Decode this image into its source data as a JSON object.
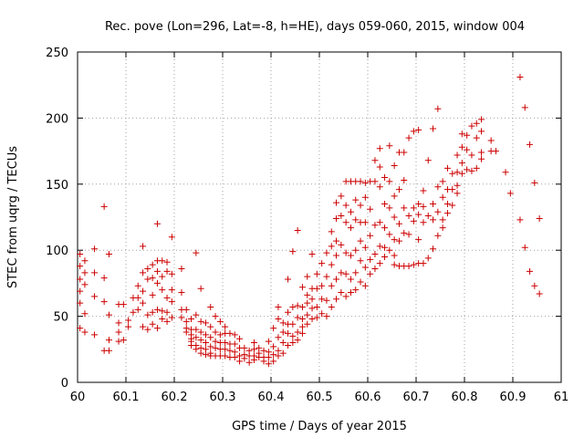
{
  "chart_data": {
    "type": "scatter",
    "title": "Rec. pove (Lon=296, Lat=-8, h=HE), days 059-060, 2015, window 004",
    "xlabel": "GPS time / Days of year 2015",
    "ylabel": "STEC from uqrg / TECUs",
    "xlim": [
      60,
      61
    ],
    "ylim": [
      0,
      250
    ],
    "xticks": [
      "60",
      "60.1",
      "60.2",
      "60.3",
      "60.4",
      "60.5",
      "60.6",
      "60.7",
      "60.8",
      "60.9",
      "61"
    ],
    "yticks": [
      "0",
      "50",
      "100",
      "150",
      "200",
      "250"
    ],
    "grid": true,
    "marker": "+",
    "color": "#cc0000",
    "points": [
      [
        60.005,
        97
      ],
      [
        60.005,
        88
      ],
      [
        60.005,
        78
      ],
      [
        60.005,
        69
      ],
      [
        60.005,
        60
      ],
      [
        60.005,
        41
      ],
      [
        60.015,
        92
      ],
      [
        60.015,
        83
      ],
      [
        60.015,
        74
      ],
      [
        60.015,
        52
      ],
      [
        60.015,
        38
      ],
      [
        60.035,
        101
      ],
      [
        60.035,
        83
      ],
      [
        60.035,
        65
      ],
      [
        60.035,
        36
      ],
      [
        60.055,
        133
      ],
      [
        60.055,
        79
      ],
      [
        60.055,
        61
      ],
      [
        60.055,
        24
      ],
      [
        60.065,
        97
      ],
      [
        60.065,
        51
      ],
      [
        60.065,
        24
      ],
      [
        60.065,
        32
      ],
      [
        60.085,
        59
      ],
      [
        60.085,
        45
      ],
      [
        60.085,
        38
      ],
      [
        60.085,
        31
      ],
      [
        60.095,
        59
      ],
      [
        60.095,
        32
      ],
      [
        60.105,
        47
      ],
      [
        60.105,
        42
      ],
      [
        60.115,
        64
      ],
      [
        60.115,
        53
      ],
      [
        60.125,
        73
      ],
      [
        60.125,
        64
      ],
      [
        60.125,
        55
      ],
      [
        60.135,
        103
      ],
      [
        60.135,
        83
      ],
      [
        60.135,
        69
      ],
      [
        60.135,
        60
      ],
      [
        60.135,
        42
      ],
      [
        60.145,
        86
      ],
      [
        60.145,
        78
      ],
      [
        60.145,
        51
      ],
      [
        60.145,
        40
      ],
      [
        60.155,
        89
      ],
      [
        60.155,
        79
      ],
      [
        60.155,
        66
      ],
      [
        60.155,
        53
      ],
      [
        60.155,
        44
      ],
      [
        60.165,
        120
      ],
      [
        60.165,
        92
      ],
      [
        60.165,
        84
      ],
      [
        60.165,
        75
      ],
      [
        60.165,
        55
      ],
      [
        60.165,
        41
      ],
      [
        60.175,
        92
      ],
      [
        60.175,
        80
      ],
      [
        60.175,
        70
      ],
      [
        60.175,
        54
      ],
      [
        60.175,
        48
      ],
      [
        60.185,
        91
      ],
      [
        60.185,
        84
      ],
      [
        60.185,
        64
      ],
      [
        60.185,
        53
      ],
      [
        60.185,
        46
      ],
      [
        60.195,
        110
      ],
      [
        60.195,
        82
      ],
      [
        60.195,
        70
      ],
      [
        60.195,
        61
      ],
      [
        60.195,
        49
      ],
      [
        60.215,
        86
      ],
      [
        60.215,
        68
      ],
      [
        60.215,
        55
      ],
      [
        60.215,
        49
      ],
      [
        60.225,
        55
      ],
      [
        60.225,
        46
      ],
      [
        60.225,
        41
      ],
      [
        60.225,
        38
      ],
      [
        60.235,
        48
      ],
      [
        60.235,
        40
      ],
      [
        60.235,
        36
      ],
      [
        60.235,
        33
      ],
      [
        60.235,
        31
      ],
      [
        60.235,
        28
      ],
      [
        60.245,
        98
      ],
      [
        60.245,
        51
      ],
      [
        60.245,
        40
      ],
      [
        60.245,
        34
      ],
      [
        60.245,
        28
      ],
      [
        60.245,
        25
      ],
      [
        60.255,
        71
      ],
      [
        60.255,
        46
      ],
      [
        60.255,
        38
      ],
      [
        60.255,
        32
      ],
      [
        60.255,
        26
      ],
      [
        60.255,
        22
      ],
      [
        60.265,
        45
      ],
      [
        60.265,
        36
      ],
      [
        60.265,
        30
      ],
      [
        60.265,
        25
      ],
      [
        60.265,
        21
      ],
      [
        60.275,
        57
      ],
      [
        60.275,
        42
      ],
      [
        60.275,
        34
      ],
      [
        60.275,
        27
      ],
      [
        60.275,
        22
      ],
      [
        60.275,
        20
      ],
      [
        60.285,
        50
      ],
      [
        60.285,
        38
      ],
      [
        60.285,
        31
      ],
      [
        60.285,
        26
      ],
      [
        60.285,
        20
      ],
      [
        60.295,
        46
      ],
      [
        60.295,
        36
      ],
      [
        60.295,
        30
      ],
      [
        60.295,
        25
      ],
      [
        60.295,
        20
      ],
      [
        60.305,
        42
      ],
      [
        60.305,
        37
      ],
      [
        60.305,
        30
      ],
      [
        60.305,
        25
      ],
      [
        60.305,
        20
      ],
      [
        60.315,
        37
      ],
      [
        60.315,
        29
      ],
      [
        60.315,
        24
      ],
      [
        60.315,
        19
      ],
      [
        60.325,
        36
      ],
      [
        60.325,
        29
      ],
      [
        60.325,
        23
      ],
      [
        60.325,
        19
      ],
      [
        60.335,
        33
      ],
      [
        60.335,
        26
      ],
      [
        60.335,
        20
      ],
      [
        60.335,
        16
      ],
      [
        60.345,
        26
      ],
      [
        60.345,
        21
      ],
      [
        60.345,
        18
      ],
      [
        60.355,
        24
      ],
      [
        60.355,
        20
      ],
      [
        60.355,
        15
      ],
      [
        60.365,
        30
      ],
      [
        60.365,
        25
      ],
      [
        60.365,
        20
      ],
      [
        60.365,
        17
      ],
      [
        60.375,
        26
      ],
      [
        60.375,
        22
      ],
      [
        60.375,
        19
      ],
      [
        60.385,
        24
      ],
      [
        60.385,
        19
      ],
      [
        60.385,
        16
      ],
      [
        60.395,
        31
      ],
      [
        60.395,
        23
      ],
      [
        60.395,
        19
      ],
      [
        60.395,
        14
      ],
      [
        60.405,
        41
      ],
      [
        60.405,
        27
      ],
      [
        60.405,
        21
      ],
      [
        60.405,
        16
      ],
      [
        60.415,
        57
      ],
      [
        60.415,
        48
      ],
      [
        60.415,
        34
      ],
      [
        60.415,
        24
      ],
      [
        60.415,
        20
      ],
      [
        60.425,
        45
      ],
      [
        60.425,
        38
      ],
      [
        60.425,
        30
      ],
      [
        60.425,
        22
      ],
      [
        60.435,
        78
      ],
      [
        60.435,
        53
      ],
      [
        60.435,
        44
      ],
      [
        60.435,
        37
      ],
      [
        60.435,
        28
      ],
      [
        60.445,
        99
      ],
      [
        60.445,
        57
      ],
      [
        60.445,
        44
      ],
      [
        60.445,
        35
      ],
      [
        60.445,
        30
      ],
      [
        60.455,
        115
      ],
      [
        60.455,
        58
      ],
      [
        60.455,
        49
      ],
      [
        60.455,
        38
      ],
      [
        60.455,
        32
      ],
      [
        60.465,
        72
      ],
      [
        60.465,
        57
      ],
      [
        60.465,
        48
      ],
      [
        60.465,
        42
      ],
      [
        60.465,
        37
      ],
      [
        60.475,
        80
      ],
      [
        60.475,
        66
      ],
      [
        60.475,
        60
      ],
      [
        60.475,
        51
      ],
      [
        60.475,
        44
      ],
      [
        60.485,
        97
      ],
      [
        60.485,
        71
      ],
      [
        60.485,
        63
      ],
      [
        60.485,
        56
      ],
      [
        60.485,
        48
      ],
      [
        60.495,
        82
      ],
      [
        60.495,
        71
      ],
      [
        60.495,
        57
      ],
      [
        60.495,
        49
      ],
      [
        60.505,
        90
      ],
      [
        60.505,
        73
      ],
      [
        60.505,
        63
      ],
      [
        60.505,
        52
      ],
      [
        60.515,
        98
      ],
      [
        60.515,
        80
      ],
      [
        60.515,
        62
      ],
      [
        60.515,
        50
      ],
      [
        60.525,
        114
      ],
      [
        60.525,
        103
      ],
      [
        60.525,
        89
      ],
      [
        60.525,
        73
      ],
      [
        60.525,
        57
      ],
      [
        60.535,
        136
      ],
      [
        60.535,
        124
      ],
      [
        60.535,
        107
      ],
      [
        60.535,
        96
      ],
      [
        60.535,
        78
      ],
      [
        60.535,
        63
      ],
      [
        60.545,
        141
      ],
      [
        60.545,
        126
      ],
      [
        60.545,
        104
      ],
      [
        60.545,
        83
      ],
      [
        60.545,
        68
      ],
      [
        60.555,
        152
      ],
      [
        60.555,
        134
      ],
      [
        60.555,
        121
      ],
      [
        60.555,
        98
      ],
      [
        60.555,
        82
      ],
      [
        60.555,
        65
      ],
      [
        60.565,
        152
      ],
      [
        60.565,
        129
      ],
      [
        60.565,
        117
      ],
      [
        60.565,
        96
      ],
      [
        60.565,
        78
      ],
      [
        60.565,
        68
      ],
      [
        60.575,
        152
      ],
      [
        60.575,
        138
      ],
      [
        60.575,
        123
      ],
      [
        60.575,
        100
      ],
      [
        60.575,
        83
      ],
      [
        60.575,
        70
      ],
      [
        60.585,
        152
      ],
      [
        60.585,
        134
      ],
      [
        60.585,
        121
      ],
      [
        60.585,
        107
      ],
      [
        60.585,
        92
      ],
      [
        60.585,
        76
      ],
      [
        60.595,
        151
      ],
      [
        60.595,
        140
      ],
      [
        60.595,
        121
      ],
      [
        60.595,
        102
      ],
      [
        60.595,
        87
      ],
      [
        60.595,
        73
      ],
      [
        60.605,
        152
      ],
      [
        60.605,
        131
      ],
      [
        60.605,
        111
      ],
      [
        60.605,
        93
      ],
      [
        60.605,
        82
      ],
      [
        60.615,
        168
      ],
      [
        60.615,
        152
      ],
      [
        60.615,
        119
      ],
      [
        60.615,
        97
      ],
      [
        60.615,
        86
      ],
      [
        60.625,
        177
      ],
      [
        60.625,
        163
      ],
      [
        60.625,
        148
      ],
      [
        60.625,
        121
      ],
      [
        60.625,
        103
      ],
      [
        60.625,
        90
      ],
      [
        60.635,
        155
      ],
      [
        60.635,
        135
      ],
      [
        60.635,
        117
      ],
      [
        60.635,
        102
      ],
      [
        60.635,
        95
      ],
      [
        60.645,
        179
      ],
      [
        60.645,
        152
      ],
      [
        60.645,
        132
      ],
      [
        60.645,
        112
      ],
      [
        60.645,
        100
      ],
      [
        60.655,
        164
      ],
      [
        60.655,
        141
      ],
      [
        60.655,
        125
      ],
      [
        60.655,
        108
      ],
      [
        60.655,
        96
      ],
      [
        60.655,
        89
      ],
      [
        60.665,
        174
      ],
      [
        60.665,
        146
      ],
      [
        60.665,
        120
      ],
      [
        60.665,
        107
      ],
      [
        60.665,
        88
      ],
      [
        60.675,
        174
      ],
      [
        60.675,
        153
      ],
      [
        60.675,
        132
      ],
      [
        60.675,
        113
      ],
      [
        60.675,
        88
      ],
      [
        60.685,
        185
      ],
      [
        60.685,
        126
      ],
      [
        60.685,
        112
      ],
      [
        60.685,
        88
      ],
      [
        60.695,
        190
      ],
      [
        60.695,
        132
      ],
      [
        60.695,
        122
      ],
      [
        60.695,
        89
      ],
      [
        60.705,
        191
      ],
      [
        60.705,
        135
      ],
      [
        60.705,
        127
      ],
      [
        60.705,
        108
      ],
      [
        60.705,
        90
      ],
      [
        60.715,
        145
      ],
      [
        60.715,
        133
      ],
      [
        60.715,
        121
      ],
      [
        60.715,
        90
      ],
      [
        60.725,
        168
      ],
      [
        60.725,
        126
      ],
      [
        60.725,
        94
      ],
      [
        60.735,
        192
      ],
      [
        60.735,
        135
      ],
      [
        60.735,
        123
      ],
      [
        60.735,
        101
      ],
      [
        60.745,
        207
      ],
      [
        60.745,
        148
      ],
      [
        60.745,
        129
      ],
      [
        60.745,
        111
      ],
      [
        60.755,
        152
      ],
      [
        60.755,
        140
      ],
      [
        60.755,
        123
      ],
      [
        60.755,
        117
      ],
      [
        60.765,
        162
      ],
      [
        60.765,
        146
      ],
      [
        60.765,
        135
      ],
      [
        60.765,
        128
      ],
      [
        60.775,
        158
      ],
      [
        60.775,
        146
      ],
      [
        60.775,
        134
      ],
      [
        60.785,
        172
      ],
      [
        60.785,
        159
      ],
      [
        60.785,
        149
      ],
      [
        60.785,
        143
      ],
      [
        60.795,
        188
      ],
      [
        60.795,
        178
      ],
      [
        60.795,
        166
      ],
      [
        60.795,
        158
      ],
      [
        60.805,
        187
      ],
      [
        60.805,
        176
      ],
      [
        60.805,
        161
      ],
      [
        60.815,
        194
      ],
      [
        60.815,
        172
      ],
      [
        60.815,
        160
      ],
      [
        60.825,
        196
      ],
      [
        60.825,
        185
      ],
      [
        60.825,
        162
      ],
      [
        60.835,
        199
      ],
      [
        60.835,
        190
      ],
      [
        60.835,
        174
      ],
      [
        60.835,
        169
      ],
      [
        60.855,
        183
      ],
      [
        60.855,
        175
      ],
      [
        60.865,
        175
      ],
      [
        60.885,
        159
      ],
      [
        60.895,
        143
      ],
      [
        60.915,
        231
      ],
      [
        60.915,
        123
      ],
      [
        60.925,
        208
      ],
      [
        60.925,
        102
      ],
      [
        60.935,
        180
      ],
      [
        60.935,
        84
      ],
      [
        60.945,
        151
      ],
      [
        60.945,
        73
      ],
      [
        60.955,
        124
      ],
      [
        60.955,
        67
      ]
    ]
  }
}
